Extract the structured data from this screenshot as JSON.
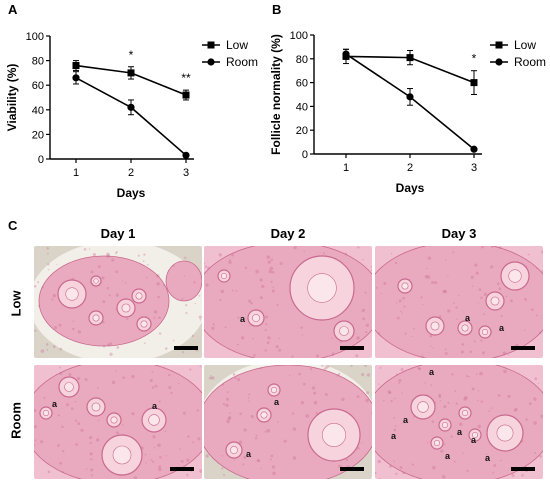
{
  "panels": {
    "a": "A",
    "b": "B",
    "c": "C"
  },
  "chart_data": [
    {
      "type": "line",
      "ylabel": "Viability (%)",
      "xlabel": "Days",
      "x": [
        1,
        2,
        3
      ],
      "xticks": [
        "1",
        "2",
        "3"
      ],
      "ylim": [
        0,
        100
      ],
      "yticks": [
        "0",
        "20",
        "40",
        "60",
        "80",
        "100"
      ],
      "legend_position": "top-right",
      "series": [
        {
          "name": "Low",
          "marker": "square",
          "values": [
            76,
            70,
            52
          ],
          "errors": [
            4,
            5,
            4
          ]
        },
        {
          "name": "Room",
          "marker": "circle",
          "values": [
            66,
            42,
            3
          ],
          "errors": [
            5,
            6,
            1
          ]
        }
      ],
      "annotations": [
        {
          "x": 2,
          "text": "*"
        },
        {
          "x": 3,
          "text": "**"
        }
      ]
    },
    {
      "type": "line",
      "ylabel": "Follicle normality (%)",
      "xlabel": "Days",
      "x": [
        1,
        2,
        3
      ],
      "xticks": [
        "1",
        "2",
        "3"
      ],
      "ylim": [
        0,
        100
      ],
      "yticks": [
        "0",
        "20",
        "40",
        "60",
        "80",
        "100"
      ],
      "legend_position": "top-right",
      "series": [
        {
          "name": "Low",
          "marker": "square",
          "values": [
            82,
            81,
            60
          ],
          "errors": [
            6,
            6,
            10
          ]
        },
        {
          "name": "Room",
          "marker": "circle",
          "values": [
            84,
            48,
            4
          ],
          "errors": [
            4,
            7,
            1
          ]
        }
      ],
      "annotations": [
        {
          "x": 3,
          "text": "*"
        }
      ]
    }
  ],
  "histology": {
    "columns": [
      "Day 1",
      "Day 2",
      "Day 3"
    ],
    "rows": [
      "Low",
      "Room"
    ],
    "marker": "a",
    "colors": {
      "tissue": "#e9a9be",
      "stroma": "#f0bfd0",
      "background": "#f2efe9",
      "follicle": "#f7d3de",
      "edge": "#c9698e"
    }
  }
}
